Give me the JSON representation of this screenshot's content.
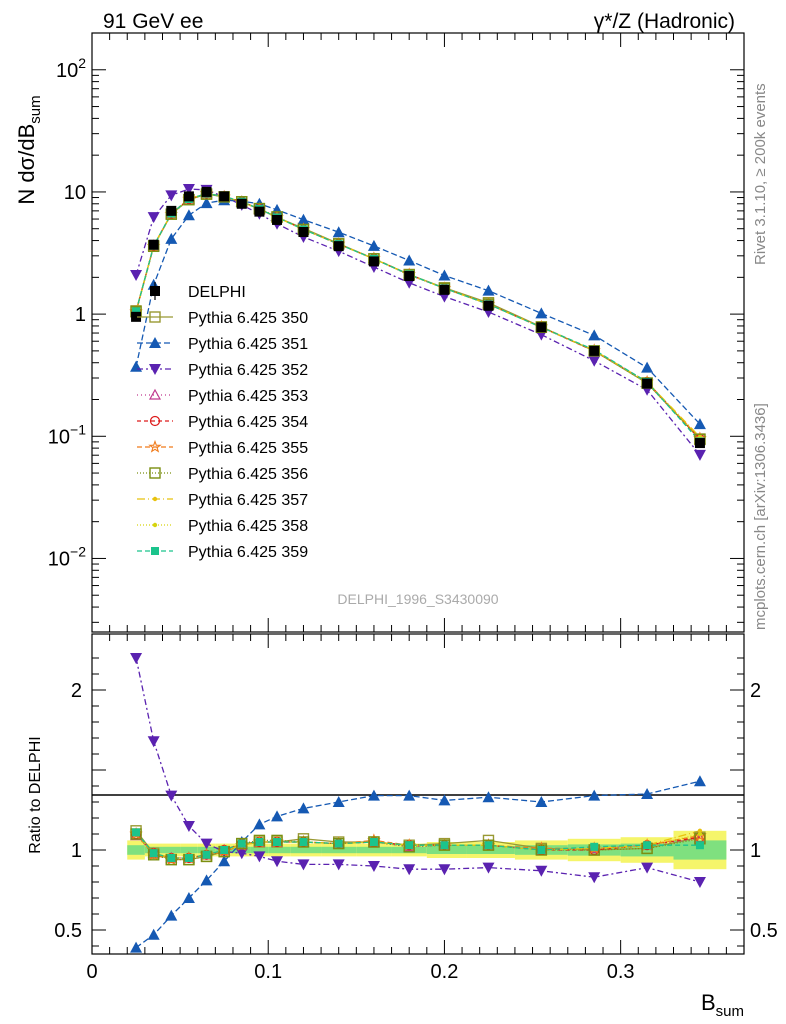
{
  "header": {
    "left": "91 GeV ee",
    "right": "γ*/Z (Hadronic)",
    "watermark": "DELPHI_1996_S3430090",
    "side_top": "Rivet 3.1.10, ≥ 200k events",
    "side_bottom": "mcplots.cern.ch [arXiv:1306.3436]"
  },
  "colors": {
    "data": "#000000",
    "p350": "#999933",
    "p351": "#1559b3",
    "p352": "#5a22b0",
    "p353": "#c0398f",
    "p354": "#dd1a1a",
    "p355": "#f07a1a",
    "p356": "#7b8f10",
    "p357": "#e8c20e",
    "p358": "#d6d40e",
    "p359": "#1bc48c",
    "band_yellow": "#f5f56a",
    "band_green": "#7fe07f"
  },
  "chart_data": {
    "type": "scatter",
    "main": {
      "ylabel": "N dσ/dB_sum",
      "yscale": "log",
      "ylim": [
        0.0025,
        200
      ],
      "y_ticks": [
        "10^-2",
        "10^-1",
        "1",
        "10",
        "10^2"
      ]
    },
    "ratio": {
      "ylabel": "Ratio to DELPHI",
      "ylim": [
        0.35,
        2.35
      ],
      "y_ticks": [
        "0.5",
        "1",
        "2"
      ]
    },
    "xlabel": "B_sum",
    "xlim": [
      0,
      0.37
    ],
    "x_ticks": [
      "0",
      "0.1",
      "0.2",
      "0.3"
    ],
    "x": [
      0.025,
      0.035,
      0.045,
      0.055,
      0.065,
      0.075,
      0.085,
      0.095,
      0.105,
      0.12,
      0.14,
      0.16,
      0.18,
      0.2,
      0.225,
      0.255,
      0.285,
      0.315,
      0.345
    ],
    "data": {
      "name": "DELPHI",
      "values": [
        0.95,
        3.7,
        7.0,
        9.2,
        10.0,
        9.2,
        8.0,
        6.9,
        5.9,
        4.7,
        3.6,
        2.7,
        2.05,
        1.58,
        1.17,
        0.78,
        0.5,
        0.27,
        0.088
      ]
    },
    "series": [
      {
        "name": "Pythia 6.425 350",
        "key": "p350",
        "marker": "square-open",
        "dash": "",
        "ratio": [
          1.12,
          0.98,
          0.94,
          0.94,
          0.96,
          0.99,
          1.04,
          1.05,
          1.05,
          1.07,
          1.05,
          1.05,
          1.03,
          1.04,
          1.06,
          1.01,
          1.0,
          1.01,
          1.08
        ]
      },
      {
        "name": "Pythia 6.425 351",
        "key": "p351",
        "marker": "triangle-up",
        "dash": "6,3",
        "ratio": [
          0.39,
          0.47,
          0.59,
          0.7,
          0.81,
          0.93,
          1.05,
          1.16,
          1.21,
          1.26,
          1.3,
          1.34,
          1.34,
          1.31,
          1.33,
          1.3,
          1.34,
          1.35,
          1.43
        ]
      },
      {
        "name": "Pythia 6.425 352",
        "key": "p352",
        "marker": "triangle-down",
        "dash": "6,3,2,3",
        "ratio": [
          2.2,
          1.68,
          1.34,
          1.15,
          1.04,
          0.99,
          0.98,
          0.96,
          0.93,
          0.91,
          0.91,
          0.9,
          0.88,
          0.88,
          0.89,
          0.87,
          0.83,
          0.89,
          0.8
        ]
      },
      {
        "name": "Pythia 6.425 353",
        "key": "p353",
        "marker": "triangle-open",
        "dash": "1,3",
        "ratio": [
          1.09,
          0.98,
          0.95,
          0.95,
          0.97,
          1.0,
          1.03,
          1.05,
          1.05,
          1.05,
          1.04,
          1.05,
          1.02,
          1.03,
          1.03,
          1.0,
          1.01,
          1.03,
          1.07
        ]
      },
      {
        "name": "Pythia 6.425 354",
        "key": "p354",
        "marker": "circle-open",
        "dash": "4,3",
        "ratio": [
          1.1,
          0.98,
          0.95,
          0.95,
          0.97,
          1.0,
          1.04,
          1.05,
          1.05,
          1.05,
          1.04,
          1.05,
          1.03,
          1.03,
          1.03,
          1.0,
          1.0,
          1.03,
          1.08
        ]
      },
      {
        "name": "Pythia 6.425 355",
        "key": "p355",
        "marker": "star-open",
        "dash": "5,3",
        "ratio": [
          1.1,
          0.97,
          0.94,
          0.95,
          0.97,
          0.99,
          1.03,
          1.05,
          1.05,
          1.05,
          1.04,
          1.06,
          1.03,
          1.03,
          1.03,
          1.01,
          1.01,
          1.03,
          1.09
        ]
      },
      {
        "name": "Pythia 6.425 356",
        "key": "p356",
        "marker": "square-open",
        "dash": "1,2",
        "ratio": [
          1.1,
          0.97,
          0.94,
          0.94,
          0.96,
          0.99,
          1.04,
          1.06,
          1.06,
          1.05,
          1.04,
          1.05,
          1.02,
          1.03,
          1.03,
          1.0,
          1.0,
          1.01,
          1.07
        ]
      },
      {
        "name": "Pythia 6.425 357",
        "key": "p357",
        "marker": "dot",
        "dash": "8,3,1,3",
        "ratio": [
          1.1,
          0.98,
          0.95,
          0.95,
          0.97,
          1.0,
          1.03,
          1.05,
          1.05,
          1.05,
          1.04,
          1.05,
          1.03,
          1.03,
          1.03,
          1.0,
          1.01,
          1.03,
          1.12
        ]
      },
      {
        "name": "Pythia 6.425 358",
        "key": "p358",
        "marker": "dot",
        "dash": "1,2",
        "ratio": [
          1.1,
          0.98,
          0.95,
          0.95,
          0.97,
          1.0,
          1.03,
          1.05,
          1.05,
          1.05,
          1.04,
          1.05,
          1.03,
          1.03,
          1.03,
          1.0,
          1.01,
          1.02,
          1.1
        ]
      },
      {
        "name": "Pythia 6.425 359",
        "key": "p359",
        "marker": "square-filled",
        "dash": "5,3",
        "ratio": [
          1.11,
          0.98,
          0.95,
          0.95,
          0.97,
          1.0,
          1.04,
          1.05,
          1.05,
          1.05,
          1.04,
          1.05,
          1.03,
          1.03,
          1.03,
          1.0,
          1.02,
          1.03,
          1.03
        ]
      }
    ]
  }
}
